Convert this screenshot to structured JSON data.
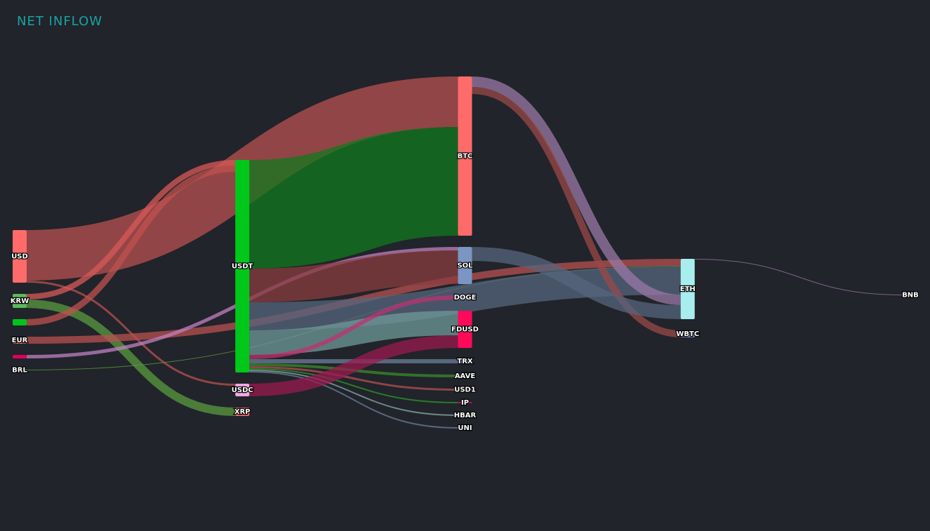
{
  "chart_data": {
    "type": "sankey",
    "title": "NET INFLOW",
    "nodes": [
      {
        "label": "USD",
        "color": "#ff6b6b"
      },
      {
        "label": "KRW",
        "color": "#5cb85c"
      },
      {
        "label": null,
        "color": "#00c51a"
      },
      {
        "label": "EUR",
        "color": "#ff6b6b"
      },
      {
        "label": null,
        "color": "#e0005a"
      },
      {
        "label": "BRL",
        "color": "#34c759"
      },
      {
        "label": "USDT",
        "color": "#00c81a"
      },
      {
        "label": "USDC",
        "color": "#f0a8e0"
      },
      {
        "label": "XRP",
        "color": "#ff6b6b"
      },
      {
        "label": "BTC",
        "color": "#ff6b6b"
      },
      {
        "label": "SOL",
        "color": "#7b96c2"
      },
      {
        "label": "DOGE",
        "color": "#a8eeee"
      },
      {
        "label": "FDUSD",
        "color": "#ff0a5a"
      },
      {
        "label": "TRX",
        "color": "#7b96c2"
      },
      {
        "label": "AAVE",
        "color": "#5cb85c"
      },
      {
        "label": "USD1",
        "color": "#ff6b6b"
      },
      {
        "label": "IP",
        "color": "#e0005a"
      },
      {
        "label": "HBAR",
        "color": "#a8eeee"
      },
      {
        "label": "UNI",
        "color": "#7b96c2"
      },
      {
        "label": "ETH",
        "color": "#a8eeee"
      },
      {
        "label": "WBTC",
        "color": "#7b96c2"
      },
      {
        "label": "BNB",
        "color": "#a8eeee"
      }
    ],
    "links": [
      {
        "source": 0,
        "target": 9,
        "value": 72,
        "color": "#b85050"
      },
      {
        "source": 0,
        "target": 7,
        "value": 3,
        "color": "#b85050"
      },
      {
        "source": 1,
        "target": 6,
        "value": 8,
        "color": "#d85858"
      },
      {
        "source": 1,
        "target": 8,
        "value": 12,
        "color": "#5a9a40"
      },
      {
        "source": 2,
        "target": 6,
        "value": 9,
        "color": "#c05050"
      },
      {
        "source": 3,
        "target": 19,
        "value": 10,
        "color": "#b85050"
      },
      {
        "source": 4,
        "target": 10,
        "value": 5,
        "color": "#c080c0"
      },
      {
        "source": 5,
        "target": 19,
        "value": 1,
        "color": "#5a9a40"
      },
      {
        "source": 6,
        "target": 9,
        "value": 155,
        "color": "#12781e"
      },
      {
        "source": 6,
        "target": 10,
        "value": 48,
        "color": "#8a3c40"
      },
      {
        "source": 6,
        "target": 19,
        "value": 40,
        "color": "#55657e"
      },
      {
        "source": 6,
        "target": 12,
        "value": 35,
        "color": "#6f9a9a"
      },
      {
        "source": 6,
        "target": 11,
        "value": 6,
        "color": "#c03070"
      },
      {
        "source": 6,
        "target": 13,
        "value": 6,
        "color": "#6a7e99"
      },
      {
        "source": 6,
        "target": 14,
        "value": 4,
        "color": "#3a8a2a"
      },
      {
        "source": 6,
        "target": 15,
        "value": 3,
        "color": "#b05050"
      },
      {
        "source": 6,
        "target": 16,
        "value": 2,
        "color": "#2a9a2a"
      },
      {
        "source": 6,
        "target": 17,
        "value": 2,
        "color": "#88aaaa"
      },
      {
        "source": 6,
        "target": 18,
        "value": 2,
        "color": "#6a7e99"
      },
      {
        "source": 7,
        "target": 12,
        "value": 18,
        "color": "#9a1a50"
      },
      {
        "source": 9,
        "target": 19,
        "value": 15,
        "color": "#9a78a8"
      },
      {
        "source": 9,
        "target": 20,
        "value": 10,
        "color": "#9a4848"
      },
      {
        "source": 10,
        "target": 19,
        "value": 20,
        "color": "#55657e"
      },
      {
        "source": 19,
        "target": 21,
        "value": 1,
        "color": "#9a78a8"
      }
    ]
  }
}
